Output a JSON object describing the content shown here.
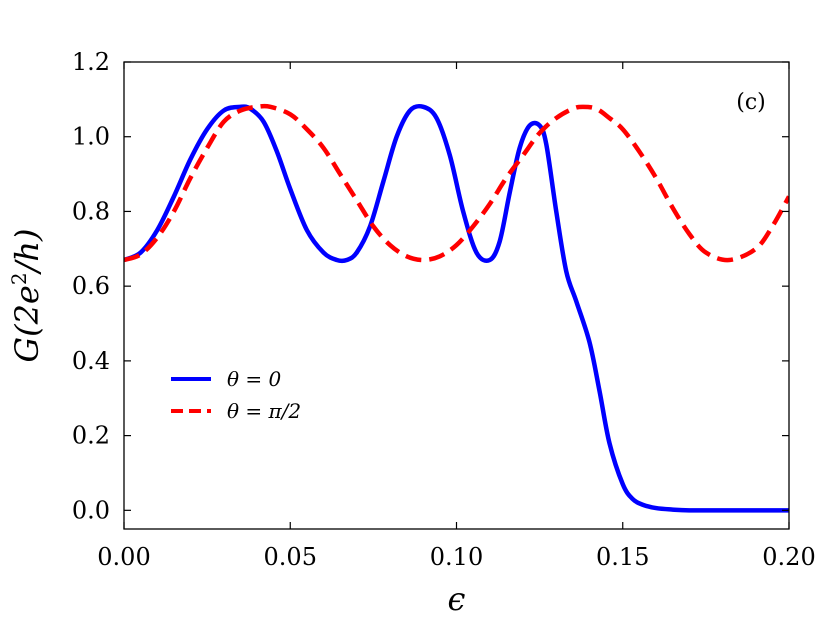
{
  "chart_data": {
    "type": "line",
    "panel_label": "(c)",
    "xlabel": "ϵ",
    "ylabel_parts": {
      "base": "G(2e",
      "sup": "2",
      "rest": "/h)"
    },
    "xlim": [
      0.0,
      0.2
    ],
    "ylim": [
      -0.05,
      1.2
    ],
    "xticks": [
      0.0,
      0.05,
      0.1,
      0.15,
      0.2
    ],
    "xtick_labels": [
      "0.00",
      "0.05",
      "0.10",
      "0.15",
      "0.20"
    ],
    "yticks": [
      0.0,
      0.2,
      0.4,
      0.6,
      0.8,
      1.0,
      1.2
    ],
    "ytick_labels": [
      "0.0",
      "0.2",
      "0.4",
      "0.6",
      "0.8",
      "1.0",
      "1.2"
    ],
    "grid": false,
    "legend_position": "center-left",
    "series": [
      {
        "name": "θ = 0",
        "color": "#0000ff",
        "dash": "solid",
        "x": [
          0.0,
          0.005,
          0.01,
          0.015,
          0.02,
          0.025,
          0.03,
          0.035,
          0.038,
          0.042,
          0.046,
          0.05,
          0.055,
          0.06,
          0.064,
          0.067,
          0.07,
          0.074,
          0.078,
          0.082,
          0.086,
          0.09,
          0.094,
          0.098,
          0.102,
          0.106,
          0.11,
          0.113,
          0.116,
          0.119,
          0.122,
          0.125,
          0.127,
          0.13,
          0.133,
          0.136,
          0.14,
          0.143,
          0.146,
          0.15,
          0.153,
          0.156,
          0.16,
          0.165,
          0.17,
          0.18,
          0.19,
          0.2
        ],
        "y": [
          0.67,
          0.69,
          0.75,
          0.84,
          0.94,
          1.02,
          1.07,
          1.08,
          1.075,
          1.04,
          0.96,
          0.86,
          0.75,
          0.69,
          0.67,
          0.67,
          0.69,
          0.76,
          0.88,
          1.0,
          1.07,
          1.08,
          1.05,
          0.95,
          0.8,
          0.69,
          0.67,
          0.72,
          0.85,
          0.97,
          1.03,
          1.03,
          0.98,
          0.8,
          0.64,
          0.56,
          0.45,
          0.32,
          0.18,
          0.07,
          0.03,
          0.015,
          0.006,
          0.002,
          0.0,
          0.0,
          0.0,
          0.0
        ]
      },
      {
        "name": "θ = π/2",
        "color": "#ff0000",
        "dash": "dashed",
        "x": [
          0.0,
          0.005,
          0.01,
          0.015,
          0.02,
          0.025,
          0.03,
          0.035,
          0.04,
          0.044,
          0.05,
          0.055,
          0.06,
          0.065,
          0.07,
          0.075,
          0.08,
          0.085,
          0.09,
          0.095,
          0.1,
          0.105,
          0.11,
          0.115,
          0.12,
          0.125,
          0.13,
          0.135,
          0.138,
          0.142,
          0.146,
          0.15,
          0.155,
          0.16,
          0.165,
          0.17,
          0.175,
          0.182,
          0.19,
          0.195,
          0.2
        ],
        "y": [
          0.67,
          0.685,
          0.73,
          0.8,
          0.89,
          0.97,
          1.04,
          1.07,
          1.08,
          1.08,
          1.06,
          1.02,
          0.97,
          0.9,
          0.83,
          0.76,
          0.71,
          0.68,
          0.67,
          0.68,
          0.71,
          0.76,
          0.82,
          0.89,
          0.95,
          1.01,
          1.05,
          1.075,
          1.08,
          1.075,
          1.05,
          1.02,
          0.96,
          0.89,
          0.81,
          0.74,
          0.69,
          0.67,
          0.7,
          0.76,
          0.84
        ]
      }
    ]
  }
}
